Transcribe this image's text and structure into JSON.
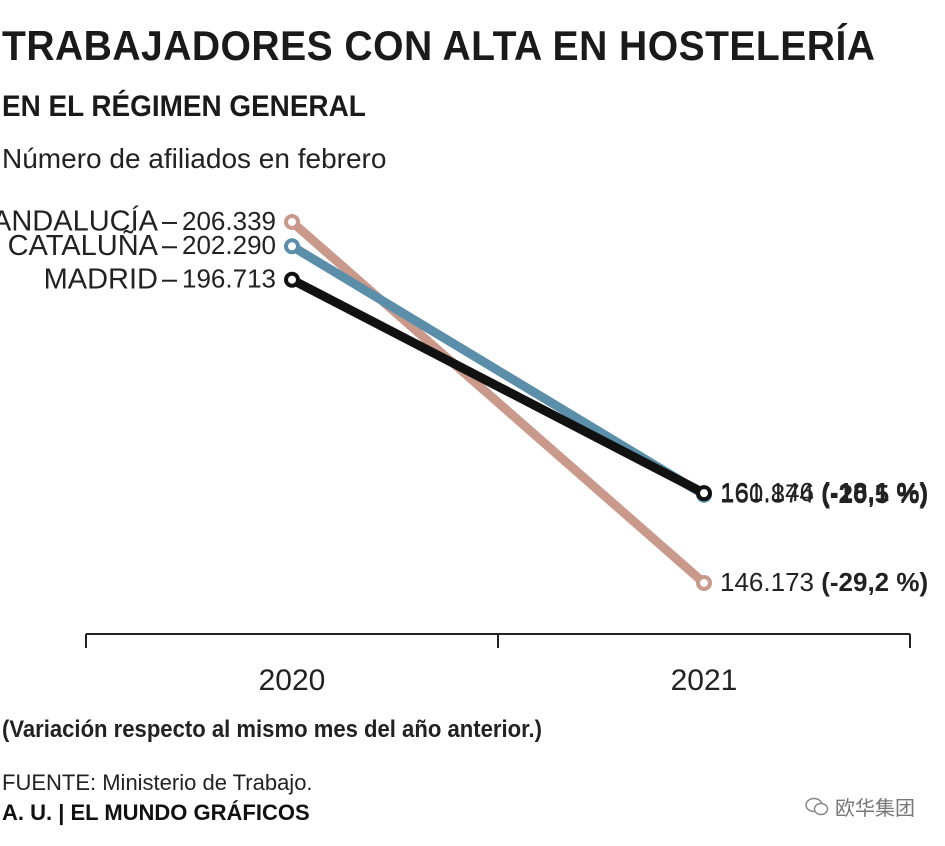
{
  "title": "TRABAJADORES CON ALTA EN HOSTELERÍA",
  "subtitle": "EN EL RÉGIMEN GENERAL",
  "description": "Número de afiliados en febrero",
  "note": "(Variación respecto al mismo mes del año anterior.)",
  "source": "FUENTE: Ministerio de Trabajo.",
  "credit": "A. U. | EL MUNDO GRÁFICOS",
  "watermark": "欧华集团",
  "colors": {
    "andalucia": "#c9998c",
    "cataluna": "#5b8ea8",
    "madrid": "#111111"
  },
  "chart_data": {
    "type": "line",
    "title": "TRABAJADORES CON ALTA EN HOSTELERÍA",
    "categories": [
      "2020",
      "2021"
    ],
    "ylim": [
      140000,
      210000
    ],
    "series": [
      {
        "name": "ANDALUCÍA",
        "values": [
          206339,
          146173
        ],
        "labels": [
          "206.339",
          "146.173"
        ],
        "change": "(-29,2 %)",
        "color": "#c9998c"
      },
      {
        "name": "CATALUÑA",
        "values": [
          202290,
          160874
        ],
        "labels": [
          "202.290",
          "160.874"
        ],
        "change": "(-20,5 %)",
        "color": "#5b8ea8"
      },
      {
        "name": "MADRID",
        "values": [
          196713,
          161146
        ],
        "labels": [
          "196.713",
          "161.146"
        ],
        "change": "(-18,1 %)",
        "color": "#111111"
      }
    ]
  }
}
